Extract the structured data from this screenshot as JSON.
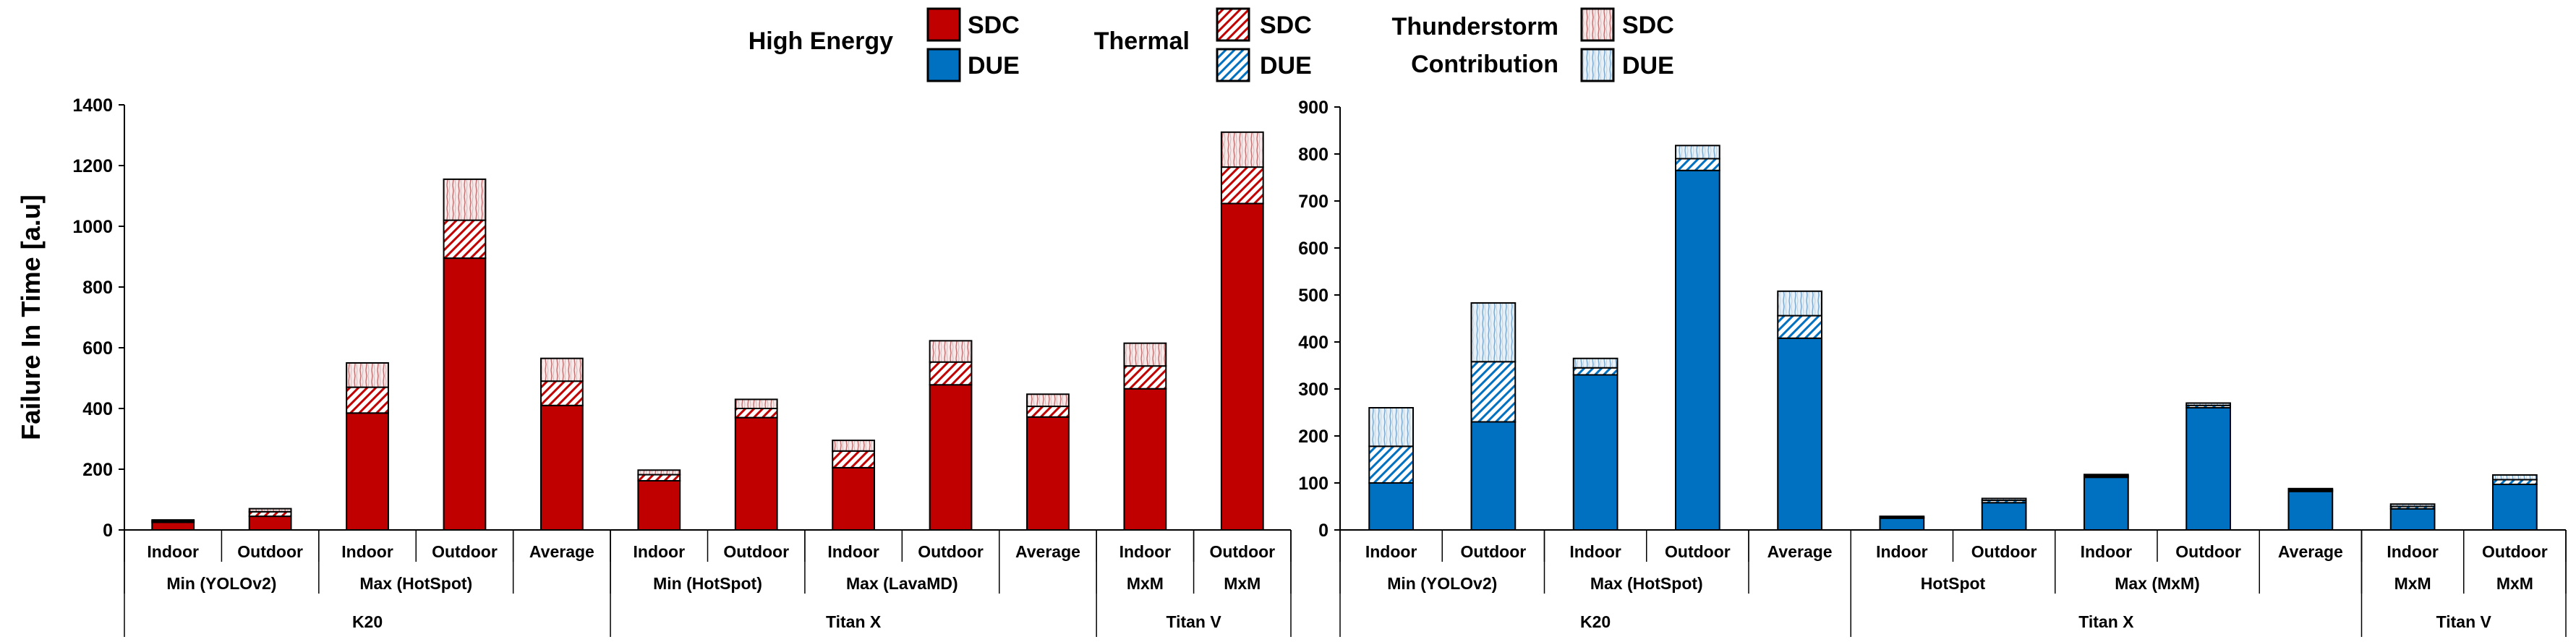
{
  "legend": {
    "groups": [
      {
        "title_lines": [
          "High Energy"
        ],
        "sdc_label": "SDC",
        "due_label": "DUE",
        "style": "solid"
      },
      {
        "title_lines": [
          "Thermal"
        ],
        "sdc_label": "SDC",
        "due_label": "DUE",
        "style": "diagonal"
      },
      {
        "title_lines": [
          "Thunderstorm",
          "Contribution"
        ],
        "sdc_label": "SDC",
        "due_label": "DUE",
        "style": "vertical"
      }
    ]
  },
  "colors": {
    "sdc": "#c00000",
    "due": "#0070c0",
    "axis": "#000000"
  },
  "chart_data": [
    {
      "type": "bar",
      "stacked": true,
      "ylabel": "Failure In Time [a.u]",
      "xlabel": "",
      "ylim": [
        0,
        1400
      ],
      "yticks": [
        0,
        200,
        400,
        600,
        800,
        1000,
        1200,
        1400
      ],
      "grid": false,
      "categories": [
        "Indoor",
        "Outdoor",
        "Indoor",
        "Outdoor",
        "Average",
        "Indoor",
        "Outdoor",
        "Indoor",
        "Outdoor",
        "Average",
        "Indoor",
        "Outdoor"
      ],
      "groups_level2": [
        {
          "label": "Min (YOLOv2)",
          "span": 2
        },
        {
          "label": "Max (HotSpot)",
          "span": 2
        },
        {
          "label": "",
          "span": 1
        },
        {
          "label": "Min (HotSpot)",
          "span": 2
        },
        {
          "label": "Max (LavaMD)",
          "span": 2
        },
        {
          "label": "",
          "span": 1
        },
        {
          "label": "MxM",
          "span": 1
        },
        {
          "label": "MxM",
          "span": 1
        }
      ],
      "groups_level3": [
        {
          "label": "K20",
          "span": 5
        },
        {
          "label": "Titan X",
          "span": 5
        },
        {
          "label": "Titan V",
          "span": 2
        }
      ],
      "series": [
        {
          "name": "High Energy",
          "component": "SDC",
          "values": [
            25,
            45,
            385,
            895,
            410,
            162,
            370,
            205,
            478,
            372,
            465,
            1075
          ]
        },
        {
          "name": "Thermal",
          "component": "SDC",
          "values": [
            5,
            15,
            85,
            125,
            80,
            20,
            30,
            55,
            75,
            35,
            75,
            120
          ]
        },
        {
          "name": "Thunderstorm Contribution",
          "component": "SDC",
          "values": [
            3,
            10,
            80,
            135,
            75,
            15,
            30,
            35,
            70,
            40,
            75,
            115
          ]
        }
      ]
    },
    {
      "type": "bar",
      "stacked": true,
      "ylabel": "",
      "xlabel": "",
      "ylim": [
        0,
        900
      ],
      "yticks": [
        0,
        100,
        200,
        300,
        400,
        500,
        600,
        700,
        800,
        900
      ],
      "grid": false,
      "categories": [
        "Indoor",
        "Outdoor",
        "Indoor",
        "Outdoor",
        "Average",
        "Indoor",
        "Outdoor",
        "Indoor",
        "Outdoor",
        "Average",
        "Indoor",
        "Outdoor"
      ],
      "groups_level2": [
        {
          "label": "Min (YOLOv2)",
          "span": 2
        },
        {
          "label": "Max (HotSpot)",
          "span": 2
        },
        {
          "label": "",
          "span": 1
        },
        {
          "label": "HotSpot",
          "span": 2
        },
        {
          "label": "Max (MxM)",
          "span": 2
        },
        {
          "label": "",
          "span": 1
        },
        {
          "label": "MxM",
          "span": 1
        },
        {
          "label": "MxM",
          "span": 1
        }
      ],
      "groups_level3": [
        {
          "label": "K20",
          "span": 5
        },
        {
          "label": "Titan X",
          "span": 5
        },
        {
          "label": "Titan V",
          "span": 2
        }
      ],
      "series": [
        {
          "name": "High Energy",
          "component": "DUE",
          "values": [
            100,
            230,
            330,
            765,
            408,
            25,
            58,
            112,
            260,
            82,
            45,
            97
          ]
        },
        {
          "name": "Thermal",
          "component": "DUE",
          "values": [
            78,
            128,
            15,
            25,
            48,
            2,
            5,
            3,
            5,
            3,
            5,
            10
          ]
        },
        {
          "name": "Thunderstorm Contribution",
          "component": "DUE",
          "values": [
            82,
            125,
            20,
            28,
            52,
            2,
            4,
            3,
            5,
            3,
            5,
            10
          ]
        }
      ]
    }
  ]
}
